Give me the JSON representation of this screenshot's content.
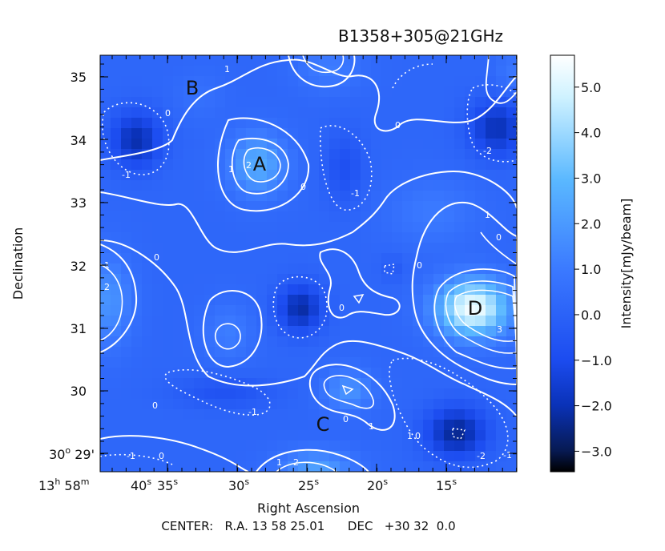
{
  "chart_data": {
    "type": "heatmap",
    "title": "B1358+305@21GHz",
    "xlabel": "Right Ascension",
    "ylabel": "Declination",
    "footer": "CENTER:   R.A. 13 58 25.01      DEC   +30 32  0.0",
    "x_ticks": [
      {
        "label": "40",
        "sup": "s"
      },
      {
        "label": "35",
        "sup": "s"
      },
      {
        "label": "30",
        "sup": "s"
      },
      {
        "label": "25",
        "sup": "s"
      },
      {
        "label": "20",
        "sup": "s"
      },
      {
        "label": "15",
        "sup": "s"
      }
    ],
    "x_tick_prefix": [
      {
        "text": "13",
        "sup": "h"
      },
      {
        "text": " 58",
        "sup": "m"
      }
    ],
    "y_ticks": [
      "35",
      "34",
      "33",
      "32",
      "31",
      "30"
    ],
    "y_tick_first": {
      "text": "30",
      "sup": "o",
      "rest": " 29'"
    },
    "colorbar": {
      "label": "Intensity[mJy/beam]",
      "range": [
        -3.45,
        5.7
      ],
      "ticks": [
        "5.0",
        "4.0",
        "3.0",
        "2.0",
        "1.0",
        "0.0",
        "−1.0",
        "−2.0",
        "−3.0"
      ],
      "tick_values": [
        5,
        4,
        3,
        2,
        1,
        0,
        -1,
        -2,
        -3
      ],
      "colors": [
        "#000000",
        "#071a52",
        "#0a32b8",
        "#1c4cf0",
        "#3a78ff",
        "#5ab8ff",
        "#cff2ff",
        "#ffffff"
      ]
    },
    "sources": [
      {
        "label": "A",
        "ra": "13 58 28.6",
        "dec": "33.6",
        "peak": 2.6
      },
      {
        "label": "B",
        "ra": "13 58 35.6",
        "dec": "35.1"
      },
      {
        "label": "C",
        "ra": "13 58 23.5",
        "dec": "29.8",
        "peak": 2.0
      },
      {
        "label": "D",
        "ra": "13 58 13.4",
        "dec": "31.3",
        "peak": 5.6
      }
    ],
    "contour_levels": [
      "-2",
      "-1",
      "0",
      "1",
      "2",
      "3"
    ],
    "grid": false,
    "legend": "right"
  }
}
